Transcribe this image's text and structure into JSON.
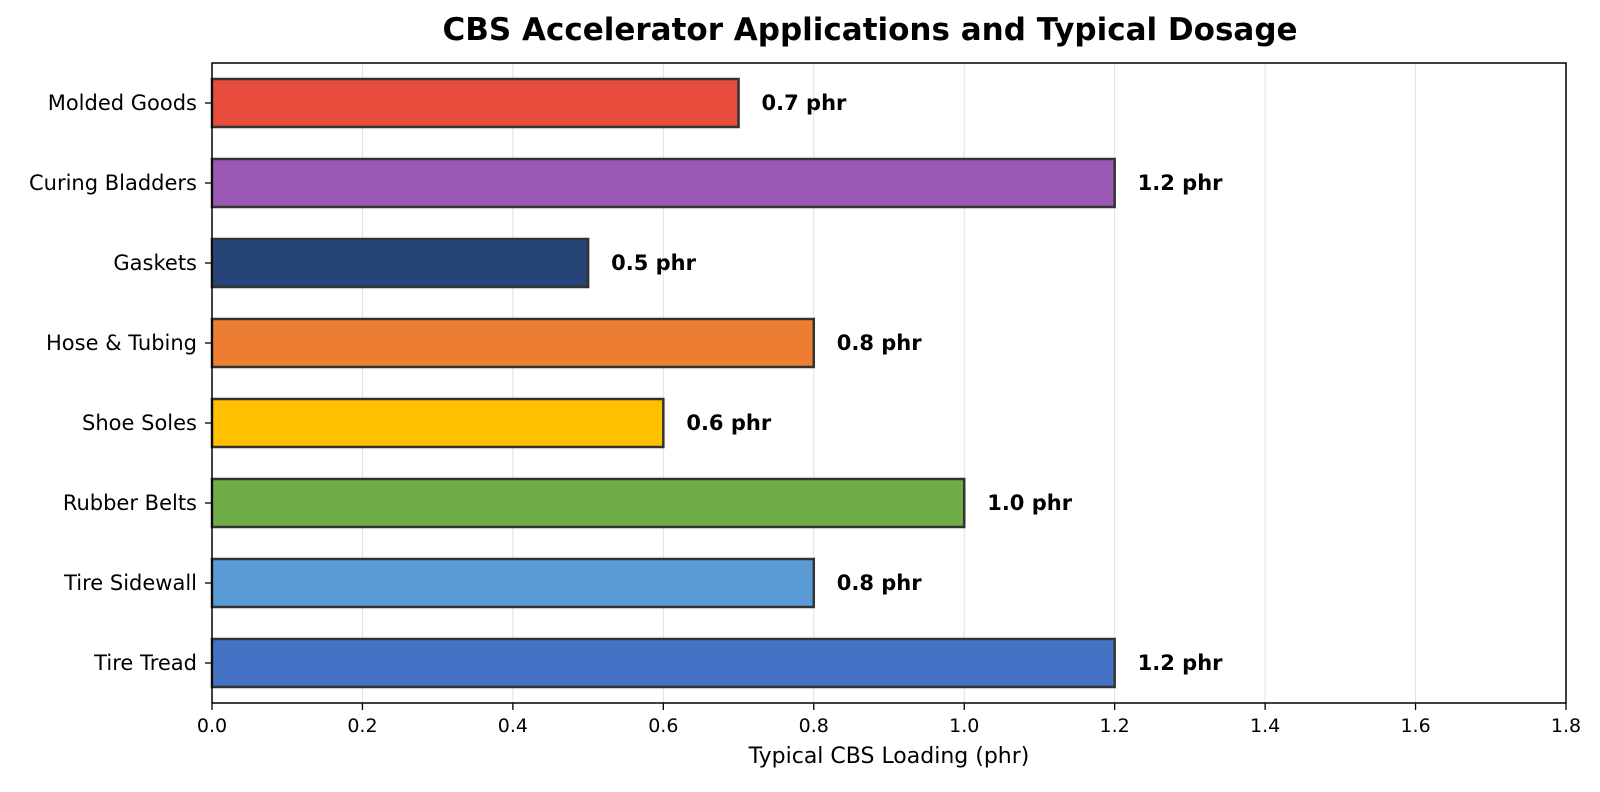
{
  "chart_data": {
    "type": "bar",
    "orientation": "horizontal",
    "title": "CBS Accelerator Applications and Typical Dosage",
    "xlabel": "Typical CBS Loading (phr)",
    "ylabel": "",
    "xlim": [
      0,
      1.8
    ],
    "xticks": [
      "0.0",
      "0.2",
      "0.4",
      "0.6",
      "0.8",
      "1.0",
      "1.2",
      "1.4",
      "1.6",
      "1.8"
    ],
    "grid": "vertical",
    "categories": [
      "Molded Goods",
      "Curing Bladders",
      "Gaskets",
      "Hose & Tubing",
      "Shoe Soles",
      "Rubber Belts",
      "Tire Sidewall",
      "Tire Tread"
    ],
    "values": [
      0.7,
      1.2,
      0.5,
      0.8,
      0.6,
      1.0,
      0.8,
      1.2
    ],
    "data_labels": [
      "0.7 phr",
      "1.2 phr",
      "0.5 phr",
      "0.8 phr",
      "0.6 phr",
      "1.0 phr",
      "0.8 phr",
      "1.2 phr"
    ],
    "colors": [
      "#e84c3d",
      "#9b59b6",
      "#264478",
      "#ed7d31",
      "#ffc000",
      "#70ad47",
      "#5b9bd5",
      "#4472c4"
    ]
  }
}
